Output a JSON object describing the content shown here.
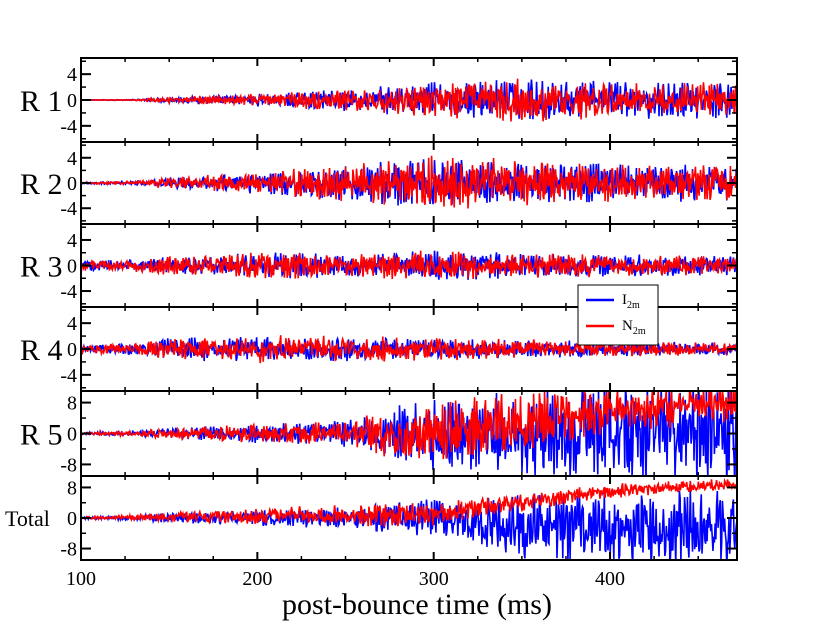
{
  "chart_data": {
    "type": "line",
    "xlabel": "post-bounce time (ms)",
    "x_ticks": [
      100,
      200,
      300,
      400
    ],
    "xlim": [
      100,
      472
    ],
    "legend": {
      "placement": "inside panel R3, right",
      "entries": [
        {
          "label_main": "I",
          "label_sub": "2m",
          "color": "#0000ff"
        },
        {
          "label_main": "N",
          "label_sub": "2m",
          "color": "#ff0000"
        }
      ]
    },
    "panels": [
      {
        "label": "R 1",
        "yticks": [
          4,
          0,
          -4
        ],
        "ytick_labels": [
          "4",
          "0",
          "-4"
        ],
        "ylim": [
          -6.5,
          6.5
        ],
        "series_envelope_summary": "flat near 0 until ~130 ms, amplitude grows to ~4 by 300-470 ms",
        "envelope": {
          "t": [
            100,
            130,
            150,
            200,
            250,
            300,
            350,
            400,
            472
          ],
          "amp_I": [
            0.02,
            0.1,
            0.5,
            1.0,
            1.8,
            3.0,
            3.2,
            3.0,
            3.0
          ],
          "amp_N": [
            0.02,
            0.1,
            0.5,
            1.0,
            1.8,
            2.8,
            3.5,
            2.8,
            2.8
          ],
          "offset_I": 0,
          "offset_N": 0
        }
      },
      {
        "label": "R 2",
        "yticks": [
          4,
          0,
          -4
        ],
        "ytick_labels": [
          "4",
          "0",
          "-4"
        ],
        "ylim": [
          -6.5,
          6.5
        ],
        "series_envelope_summary": "small until ~130 ms, amplitude ~4-5 between 250-400 ms",
        "envelope": {
          "t": [
            100,
            130,
            150,
            200,
            250,
            300,
            350,
            400,
            472
          ],
          "amp_I": [
            0.15,
            0.3,
            0.9,
            1.8,
            3.0,
            4.0,
            3.8,
            3.2,
            3.0
          ],
          "amp_N": [
            0.15,
            0.3,
            0.9,
            1.8,
            3.2,
            4.5,
            4.0,
            3.0,
            3.0
          ],
          "offset_I": 0,
          "offset_N": 0
        }
      },
      {
        "label": "R 3",
        "yticks": [
          4,
          0,
          -4
        ],
        "ytick_labels": [
          "4",
          "0",
          "-4"
        ],
        "ylim": [
          -6.5,
          6.5
        ],
        "series_envelope_summary": "moderate amplitude ~2-3 throughout",
        "envelope": {
          "t": [
            100,
            130,
            150,
            200,
            250,
            300,
            350,
            400,
            472
          ],
          "amp_I": [
            0.8,
            1.0,
            1.5,
            2.2,
            2.0,
            2.6,
            2.0,
            1.8,
            1.6
          ],
          "amp_N": [
            0.8,
            1.0,
            1.5,
            2.2,
            2.0,
            2.4,
            2.0,
            1.8,
            1.6
          ],
          "offset_I": 0,
          "offset_N": 0
        }
      },
      {
        "label": "R 4",
        "yticks": [
          4,
          0,
          -4
        ],
        "ytick_labels": [
          "4",
          "0",
          "-4"
        ],
        "ylim": [
          -6.5,
          6.5
        ],
        "series_envelope_summary": "moderate amplitude ~2 throughout",
        "envelope": {
          "t": [
            100,
            130,
            150,
            200,
            250,
            300,
            350,
            400,
            472
          ],
          "amp_I": [
            0.6,
            1.0,
            1.8,
            2.0,
            2.0,
            1.6,
            1.6,
            1.2,
            1.0
          ],
          "amp_N": [
            0.6,
            1.0,
            1.8,
            2.2,
            2.2,
            1.8,
            1.6,
            1.2,
            1.0
          ],
          "offset_I": 0,
          "offset_N": 0
        }
      },
      {
        "label": "R 5",
        "yticks": [
          8,
          0,
          -8
        ],
        "ytick_labels": [
          "8",
          "0",
          "-8"
        ],
        "ylim": [
          -11,
          11
        ],
        "series_envelope_summary": "growing; after ~270 ms large excursions exceeding the axis range; red drifts upward to ~8 after 400 ms",
        "envelope": {
          "t": [
            100,
            130,
            150,
            200,
            250,
            270,
            300,
            350,
            400,
            472
          ],
          "amp_I": [
            0.3,
            0.8,
            1.5,
            2.5,
            3.5,
            6,
            10,
            12,
            14,
            14
          ],
          "amp_N": [
            0.3,
            0.8,
            1.5,
            2.5,
            3.5,
            6,
            8,
            9,
            6,
            5
          ],
          "offset_I": 0,
          "offset_N": 0,
          "drift_N": {
            "t": [
              100,
              300,
              350,
              400,
              472
            ],
            "v": [
              0,
              0,
              3,
              6,
              8
            ]
          }
        }
      },
      {
        "label": "Total",
        "yticks": [
          8,
          0,
          -8
        ],
        "ytick_labels": [
          "8",
          "0",
          "-8"
        ],
        "ylim": [
          -11,
          11
        ],
        "series_envelope_summary": "growing; blue spikes clipped below after ~300 ms; red drifts upward to ~8 by 470 ms",
        "envelope": {
          "t": [
            100,
            130,
            150,
            200,
            250,
            300,
            350,
            400,
            472
          ],
          "amp_I": [
            0.3,
            0.7,
            1.3,
            2.2,
            3.0,
            5.5,
            9,
            10,
            11
          ],
          "amp_N": [
            0.3,
            0.7,
            1.3,
            2.2,
            3.0,
            3.5,
            2.5,
            2.0,
            1.5
          ],
          "offset_I": 0,
          "offset_N": 0,
          "drift_N": {
            "t": [
              100,
              300,
              350,
              400,
              472
            ],
            "v": [
              0,
              1,
              4,
              7,
              9
            ]
          },
          "drift_I": {
            "t": [
              100,
              300,
              350,
              400,
              472
            ],
            "v": [
              0,
              0,
              -2,
              -3,
              -3
            ]
          }
        }
      }
    ]
  }
}
